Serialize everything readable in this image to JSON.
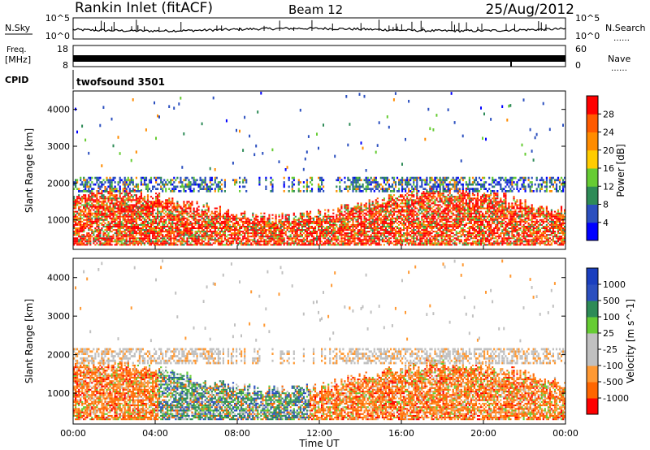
{
  "header": {
    "station": "Rankin Inlet (fitACF)",
    "beam": "Beam 12",
    "date": "25/Aug/2012"
  },
  "noise_panel": {
    "left_label": "N.Sky",
    "left_ticks": [
      "10^5",
      "10^0"
    ],
    "right_label": "N.Search",
    "right_ticks": [
      "10^5",
      "10^0"
    ]
  },
  "freq_panel": {
    "left_label_line1": "Freq.",
    "left_label_line2": "[MHz]",
    "left_ticks": [
      "18",
      "8"
    ],
    "right_label": "Nave",
    "right_ticks": [
      "60",
      "0"
    ]
  },
  "cpid": {
    "label": "CPID",
    "value": "twofsound 3501"
  },
  "colors": {
    "power_scale": [
      "#0000ff",
      "#2b4fbf",
      "#2e8b57",
      "#66cc33",
      "#ffcc00",
      "#ff8c00",
      "#ff5a00",
      "#ff0000"
    ],
    "velocity_scale": [
      "#ff0000",
      "#ff6600",
      "#ff9933",
      "#c0c0c0",
      "#c0c0c0",
      "#66cc33",
      "#2e8b57",
      "#2b4fbf",
      "#1a3fbf"
    ]
  },
  "chart_data": [
    {
      "type": "heatmap",
      "quantity": "power",
      "ylabel": "Slant Range [km]",
      "y_ticks": [
        1000,
        2000,
        3000,
        4000
      ],
      "ylim": [
        200,
        4500
      ],
      "colorbar": {
        "label": "Power [dB]",
        "ticks": [
          4,
          8,
          12,
          16,
          20,
          24,
          28
        ],
        "range": [
          0,
          32
        ]
      },
      "features": [
        {
          "description": "strong ionospheric scatter",
          "x_range": [
            "00:00",
            "24:00"
          ],
          "y_range_km": [
            300,
            1700
          ]
        },
        {
          "description": "second band",
          "x_range": [
            "00:00",
            "24:00"
          ],
          "y_range_km": [
            1800,
            2200
          ]
        }
      ]
    },
    {
      "type": "heatmap",
      "quantity": "velocity",
      "ylabel": "Slant Range [km]",
      "xlabel": "Time UT",
      "x_ticks": [
        "00:00",
        "04:00",
        "08:00",
        "12:00",
        "16:00",
        "20:00",
        "00:00"
      ],
      "y_ticks": [
        1000,
        2000,
        3000,
        4000
      ],
      "ylim": [
        200,
        4500
      ],
      "colorbar": {
        "label": "Velocity [m s^-1]",
        "ticks": [
          1000,
          500,
          100,
          25,
          -25,
          -100,
          -500,
          -1000
        ]
      }
    }
  ]
}
